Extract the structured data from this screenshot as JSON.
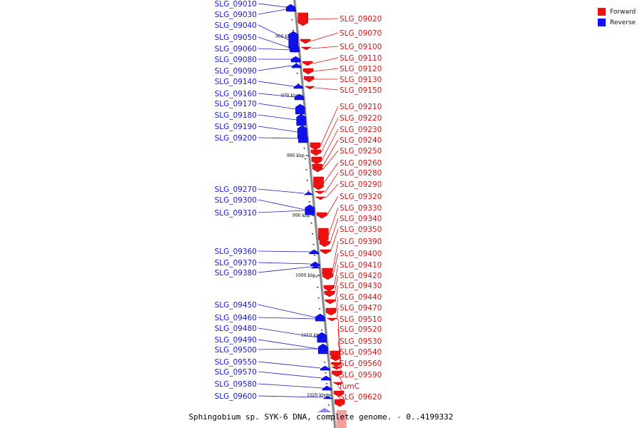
{
  "legend": {
    "forward": {
      "label": "Forward",
      "color": "#ee1111"
    },
    "reverse": {
      "label": "Reverse",
      "color": "#1111ee"
    }
  },
  "caption": "Sphingobium sp. SYK-6 DNA, complete genome. - 0..4199332",
  "kbp_ticks": [
    "960 kbp",
    "970 kbp",
    "980 kbp",
    "990 kbp",
    "1000 kbp",
    "1010 kbp",
    "1020 kbp"
  ],
  "reverse_genes": [
    "SLG_09010",
    "SLG_09030",
    "SLG_09040",
    "SLG_09050",
    "SLG_09060",
    "SLG_09080",
    "SLG_09090",
    "SLG_09140",
    "SLG_09160",
    "SLG_09170",
    "SLG_09180",
    "SLG_09190",
    "SLG_09200",
    "SLG_09270",
    "SLG_09300",
    "SLG_09310",
    "SLG_09360",
    "SLG_09370",
    "SLG_09380",
    "SLG_09450",
    "SLG_09460",
    "SLG_09480",
    "SLG_09490",
    "SLG_09500",
    "SLG_09550",
    "SLG_09570",
    "SLG_09580",
    "SLG_09600"
  ],
  "forward_genes": [
    "SLG_09020",
    "SLG_09070",
    "SLG_09100",
    "SLG_09110",
    "SLG_09120",
    "SLG_09130",
    "SLG_09150",
    "SLG_09210",
    "SLG_09220",
    "SLG_09230",
    "SLG_09240",
    "SLG_09250",
    "SLG_09260",
    "SLG_09280",
    "SLG_09290",
    "SLG_09320",
    "SLG_09330",
    "SLG_09340",
    "SLG_09350",
    "SLG_09390",
    "SLG_09400",
    "SLG_09410",
    "SLG_09420",
    "SLG_09430",
    "SLG_09440",
    "SLG_09470",
    "SLG_09510",
    "SLG_09520",
    "SLG_09530",
    "SLG_09540",
    "SLG_09560",
    "SLG_09590",
    "fumC",
    "SLG_09620"
  ]
}
